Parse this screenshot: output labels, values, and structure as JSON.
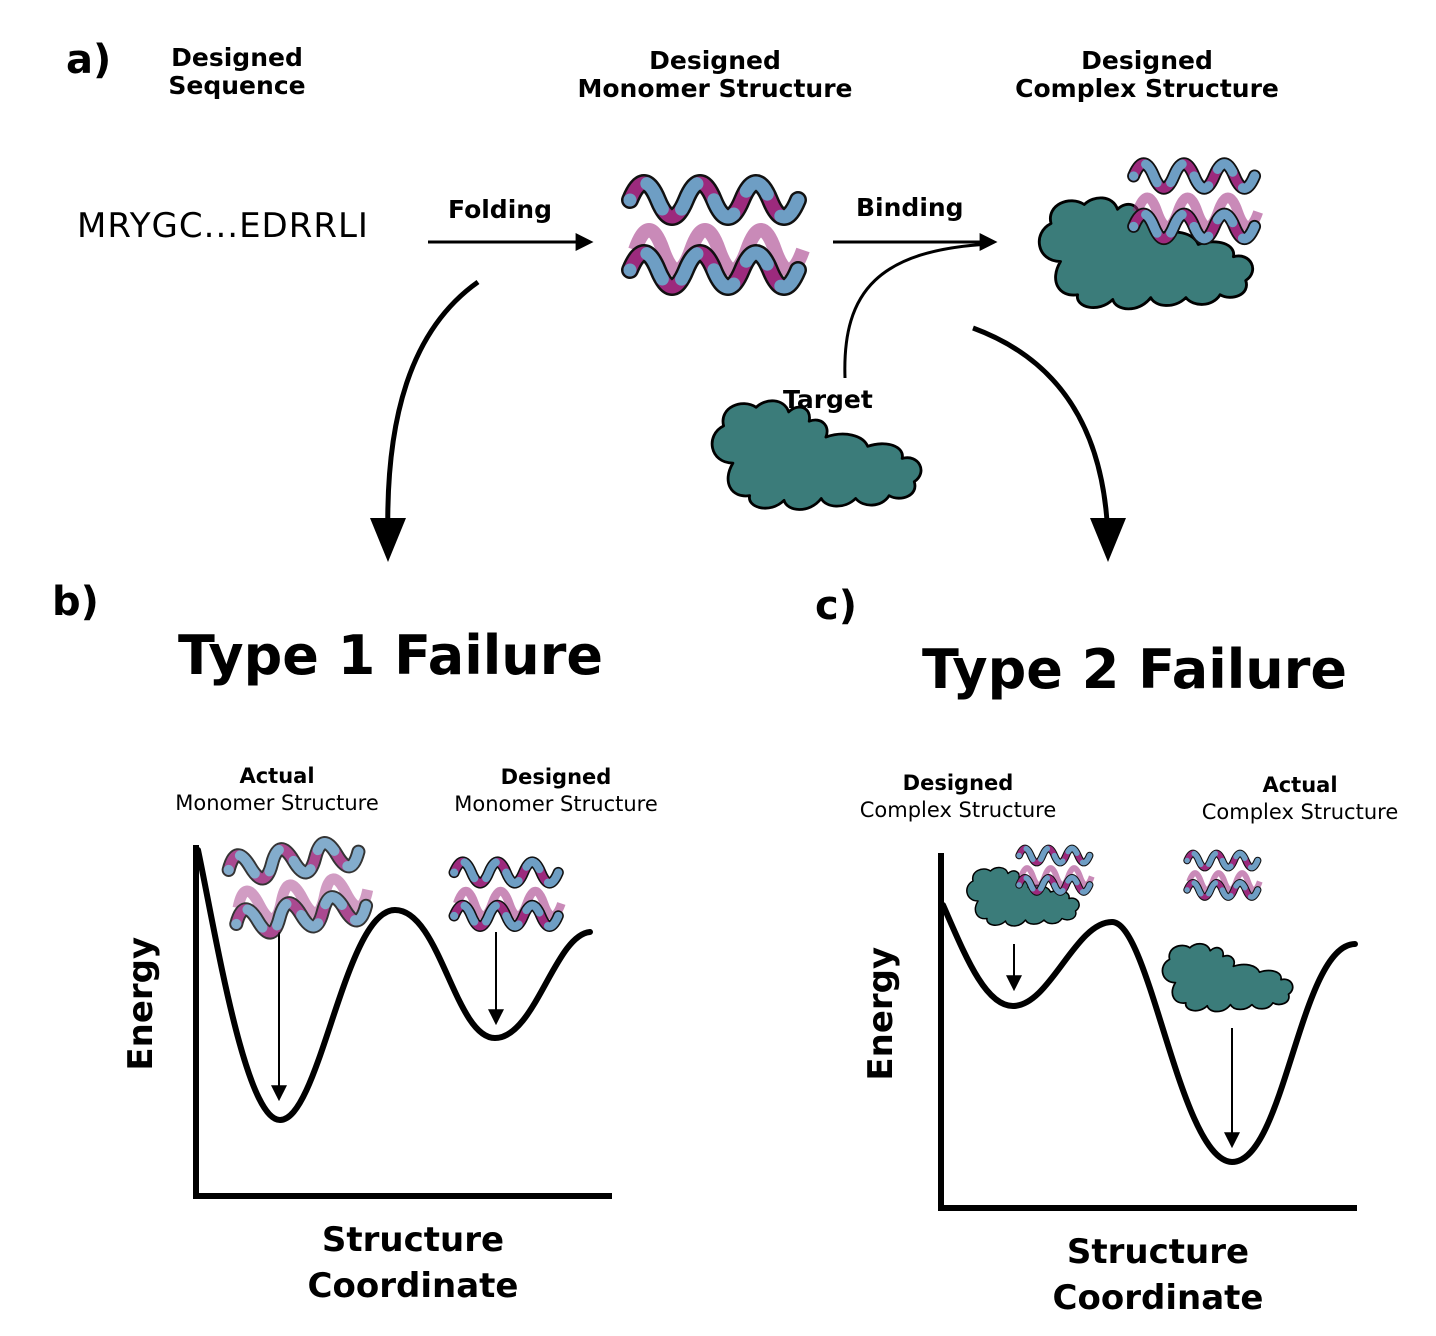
{
  "panel_a": {
    "label": "a)",
    "sequence_header": [
      "Designed",
      "Sequence"
    ],
    "monomer_header": [
      "Designed",
      "Monomer Structure"
    ],
    "complex_header": [
      "Designed",
      "Complex Structure"
    ],
    "sequence": "MRYGC...EDRRLI",
    "folding_label": "Folding",
    "binding_label": "Binding",
    "target_label": "Target"
  },
  "panel_b": {
    "label": "b)",
    "title": "Type 1 Failure",
    "left_annotation": [
      "Actual",
      "Monomer Structure"
    ],
    "right_annotation": [
      "Designed",
      "Monomer Structure"
    ],
    "x_axis": [
      "Structure",
      "Coordinate"
    ],
    "y_axis": "Energy"
  },
  "panel_c": {
    "label": "c)",
    "title": "Type 2 Failure",
    "left_annotation": [
      "Designed",
      "Complex Structure"
    ],
    "right_annotation": [
      "Actual",
      "Complex Structure"
    ],
    "x_axis": [
      "Structure",
      "Coordinate"
    ],
    "y_axis": "Energy"
  },
  "colors": {
    "helix_magenta": "#9c2a7d",
    "helix_blue": "#6e9ec4",
    "target_teal": "#3b7c7a",
    "line": "#000000"
  }
}
